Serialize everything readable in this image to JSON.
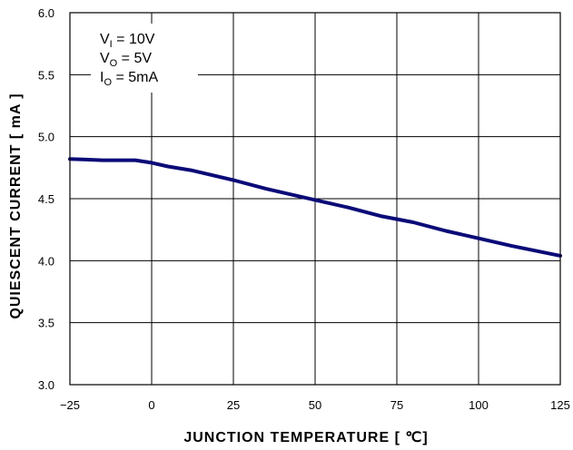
{
  "chart_data": {
    "type": "line",
    "xlabel": "JUNCTION TEMPERATURE [ ℃]",
    "ylabel": "QUIESCENT CURRENT [ mA ]",
    "xlim": [
      -25,
      125
    ],
    "ylim": [
      3.0,
      6.0
    ],
    "x_ticks": [
      "−25",
      "0",
      "25",
      "50",
      "75",
      "100",
      "125"
    ],
    "y_ticks": [
      "3.0",
      "3.5",
      "4.0",
      "4.5",
      "5.0",
      "5.5",
      "6.0"
    ],
    "grid": true,
    "conditions": [
      {
        "main": "V",
        "sub": "I",
        "rest": " = 10V"
      },
      {
        "main": "V",
        "sub": "O",
        "rest": " = 5V"
      },
      {
        "main": "I",
        "sub": "O",
        "rest": " = 5mA"
      }
    ],
    "series": [
      {
        "color": "#0a0a78",
        "x": [
          -25,
          -20,
          -15,
          -10,
          -5,
          0,
          5,
          12,
          25,
          35,
          50,
          60,
          70,
          80,
          90,
          100,
          110,
          125
        ],
        "y": [
          4.82,
          4.815,
          4.81,
          4.81,
          4.81,
          4.79,
          4.76,
          4.73,
          4.65,
          4.58,
          4.49,
          4.43,
          4.36,
          4.31,
          4.24,
          4.18,
          4.12,
          4.04
        ]
      }
    ]
  }
}
